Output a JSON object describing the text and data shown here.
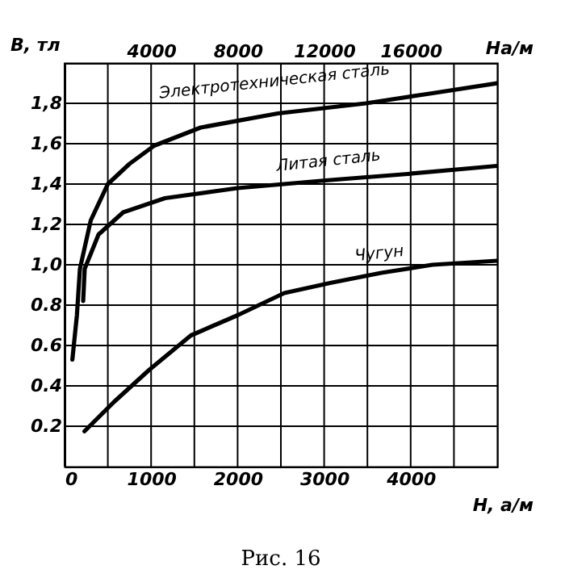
{
  "chart_data": {
    "type": "line",
    "xlabel": "Н, а/м",
    "ylabel": "В, тл",
    "x2label": "На/м",
    "annotations": [
      "Рис. 16"
    ],
    "xlim": [
      0,
      5000
    ],
    "xticks": [
      0,
      {
        "value": 500,
        "label": null
      },
      1000,
      {
        "value": 1500,
        "label": null
      },
      2000,
      {
        "value": 2500,
        "label": null
      },
      3000,
      {
        "value": 3500,
        "label": null
      },
      4000,
      {
        "value": 4500,
        "label": null
      }
    ],
    "x2lim": [
      0,
      20000
    ],
    "x2ticks": [
      4000,
      8000,
      12000,
      16000
    ],
    "ylim": [
      0,
      2.0
    ],
    "yticks": [
      {
        "value": 0.2,
        "label": "0.2"
      },
      {
        "value": 0.4,
        "label": "0.4"
      },
      {
        "value": 0.6,
        "label": "0.6"
      },
      {
        "value": 0.8,
        "label": "0.8"
      },
      {
        "value": 1.0,
        "label": "1,0"
      },
      {
        "value": 1.2,
        "label": "1,2"
      },
      {
        "value": 1.4,
        "label": "1,4"
      },
      {
        "value": 1.6,
        "label": "1,6"
      },
      {
        "value": 1.8,
        "label": "1,8"
      }
    ],
    "grid": true,
    "marker": "none",
    "line_style": "solid",
    "series": [
      {
        "name": "Электротехническая сталь",
        "color": "#000000",
        "axis": "x2",
        "x": [
          360,
          570,
          710,
          1210,
          2000,
          3000,
          4140,
          6290,
          9860,
          13930,
          17000,
          20000
        ],
        "values": [
          0.53,
          0.75,
          0.98,
          1.22,
          1.4,
          1.5,
          1.59,
          1.68,
          1.75,
          1.8,
          1.85,
          1.9
        ]
      },
      {
        "name": "Литая сталь",
        "color": "#000000",
        "axis": "x2",
        "x": [
          860,
          930,
          1570,
          2710,
          4640,
          8000,
          12290,
          15860,
          20000
        ],
        "values": [
          0.82,
          0.98,
          1.15,
          1.26,
          1.33,
          1.38,
          1.42,
          1.45,
          1.49
        ]
      },
      {
        "name": "Чугун",
        "color": "#000000",
        "x": [
          230,
          570,
          980,
          1460,
          2000,
          2540,
          3070,
          3660,
          4250,
          5000
        ],
        "values": [
          0.175,
          0.32,
          0.48,
          0.65,
          0.75,
          0.86,
          0.91,
          0.96,
          1.0,
          1.02
        ]
      }
    ]
  }
}
